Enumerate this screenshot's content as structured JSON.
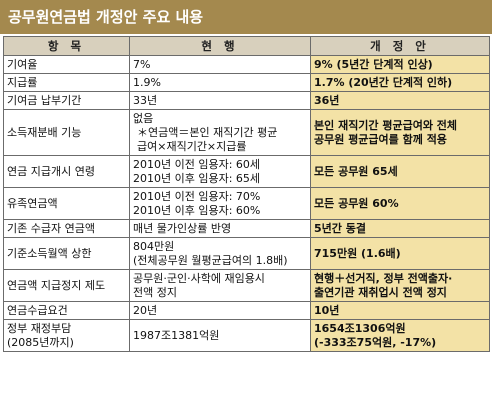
{
  "title": "공무원연금법 개정안 주요 내용",
  "headers": [
    "항 목",
    "현 행",
    "개 정 안"
  ],
  "rows": [
    {
      "item": [
        "기여율"
      ],
      "current": [
        "7%"
      ],
      "proposed": [
        "9% (5년간 단계적 인상)"
      ]
    },
    {
      "item": [
        "지급률"
      ],
      "current": [
        "1.9%"
      ],
      "proposed": [
        "1.7% (20년간 단계적 인하)"
      ]
    },
    {
      "item": [
        "기여금 납부기간"
      ],
      "current": [
        "33년"
      ],
      "proposed": [
        "36년"
      ]
    },
    {
      "item": [
        "소득재분배 기능"
      ],
      "current": [
        "없음",
        "＊연금액＝본인 재직기간 평균",
        "급여×재직기간×지급률"
      ],
      "proposed": [
        "본인 재직기간 평균급여와 전체",
        "공무원 평균급여를 함께 적용"
      ]
    },
    {
      "item": [
        "연금 지급개시 연령"
      ],
      "current": [
        "2010년 이전 임용자: 60세",
        "2010년 이후 임용자: 65세"
      ],
      "proposed": [
        "모든 공무원 65세"
      ]
    },
    {
      "item": [
        "유족연금액"
      ],
      "current": [
        "2010년 이전 임용자: 70%",
        "2010년 이후 임용자: 60%"
      ],
      "proposed": [
        "모든 공무원 60%"
      ]
    },
    {
      "item": [
        "기존 수급자 연금액"
      ],
      "current": [
        "매년 물가인상률 반영"
      ],
      "proposed": [
        "5년간 동결"
      ]
    },
    {
      "item": [
        "기준소득월액 상한"
      ],
      "current": [
        "804만원",
        "(전체공무원 월평균급여의 1.8배)"
      ],
      "proposed": [
        "715만원 (1.6배)"
      ]
    },
    {
      "item": [
        "연금액 지급정지 제도"
      ],
      "current": [
        "공무원·군인·사학에 재임용시",
        "전액 정지"
      ],
      "proposed": [
        "현행＋선거직, 정부 전액출자·",
        "출연기관 재취업시 전액 정지"
      ]
    },
    {
      "item": [
        "연금수급요건"
      ],
      "current": [
        "20년"
      ],
      "proposed": [
        "10년"
      ]
    },
    {
      "item": [
        "정부 재정부담",
        "(2085년까지)"
      ],
      "current": [
        "1987조1381억원"
      ],
      "proposed": [
        "1654조1306억원",
        "(-333조75억원, -17%)"
      ]
    }
  ]
}
